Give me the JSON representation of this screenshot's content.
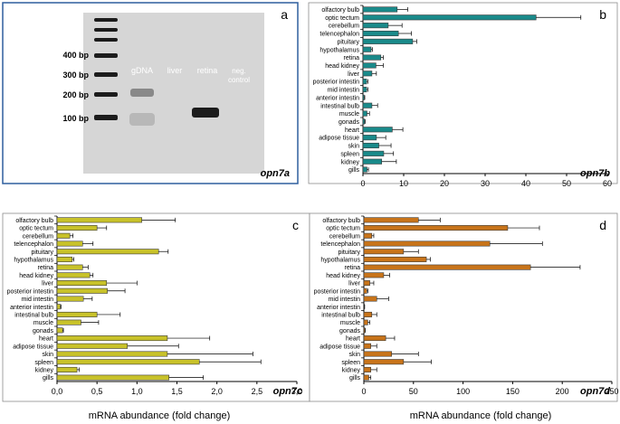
{
  "categories": [
    "olfactory bulb",
    "optic tectum",
    "cerebellum",
    "telencephalon",
    "pituitary",
    "hypothalamus",
    "retina",
    "head kidney",
    "liver",
    "posterior intestin",
    "mid intestin",
    "anterior intestin",
    "intestinal bulb",
    "muscle",
    "gonads",
    "heart",
    "adipose tissue",
    "skin",
    "spleen",
    "kidney",
    "gills"
  ],
  "common_xlabel": "mRNA abundance (fold change)",
  "colors": {
    "gel_frame": "#2e5f9e",
    "axis": "#000000"
  },
  "gel": {
    "panel_letter": "a",
    "gene_label": "opn7a",
    "ladder_labels": [
      "400 bp",
      "300 bp",
      "200 bp",
      "100 bp"
    ],
    "lane_labels": [
      "gDNA",
      "liver",
      "retina",
      "neg.\ncontrol"
    ]
  },
  "chart_data": [
    {
      "type": "bar",
      "orientation": "horizontal",
      "panel_letter": "b",
      "gene_label": "opn7b",
      "color": "#1a8a8a",
      "xlim": [
        0,
        60
      ],
      "xticks": [
        0,
        10,
        20,
        30,
        40,
        50,
        60
      ],
      "xticklabels": [
        "0",
        "10",
        "20",
        "30",
        "40",
        "50",
        "60"
      ],
      "values": [
        8.4,
        42.5,
        6.2,
        8.7,
        12.2,
        2.0,
        4.4,
        3.2,
        2.2,
        0.9,
        0.9,
        0.3,
        2.2,
        1.0,
        0.4,
        7.2,
        3.3,
        3.9,
        5.1,
        4.6,
        1.0
      ],
      "errors": [
        2.6,
        11.0,
        3.4,
        3.2,
        1.0,
        0.3,
        0.6,
        1.8,
        1.1,
        0.3,
        0.3,
        0.15,
        1.4,
        0.6,
        0.15,
        2.6,
        2.3,
        3.0,
        2.4,
        3.6,
        0.35
      ]
    },
    {
      "type": "bar",
      "orientation": "horizontal",
      "panel_letter": "c",
      "gene_label": "opn7c",
      "color": "#c8c22a",
      "xlim": [
        0,
        3
      ],
      "xticks": [
        0,
        0.5,
        1,
        1.5,
        2,
        2.5,
        3
      ],
      "xticklabels": [
        "0,0",
        "0,5",
        "1,0",
        "1,5",
        "2,0",
        "2,5",
        "3,0"
      ],
      "values": [
        1.06,
        0.5,
        0.16,
        0.32,
        1.27,
        0.19,
        0.32,
        0.41,
        0.62,
        0.63,
        0.33,
        0.04,
        0.5,
        0.3,
        0.07,
        1.38,
        0.88,
        1.38,
        1.78,
        0.25,
        1.4
      ],
      "errors": [
        0.42,
        0.12,
        0.04,
        0.13,
        0.12,
        0.02,
        0.07,
        0.04,
        0.38,
        0.22,
        0.11,
        0.01,
        0.29,
        0.22,
        0.01,
        0.53,
        0.64,
        1.07,
        0.77,
        0.03,
        0.43
      ]
    },
    {
      "type": "bar",
      "orientation": "horizontal",
      "panel_letter": "d",
      "gene_label": "opn7d",
      "color": "#c8741a",
      "xlim": [
        0,
        250
      ],
      "xticks": [
        0,
        50,
        100,
        150,
        200,
        250
      ],
      "xticklabels": [
        "0",
        "50",
        "100",
        "150",
        "200",
        "250"
      ],
      "values": [
        55,
        145,
        8,
        127,
        40,
        63,
        168,
        20,
        6,
        3,
        13,
        0.5,
        8,
        4,
        1,
        22,
        7,
        28,
        40,
        7,
        5
      ],
      "errors": [
        22,
        32,
        2,
        53,
        15,
        4,
        50,
        6,
        4,
        1,
        12,
        0.3,
        5,
        2,
        0.4,
        9,
        6,
        27,
        28,
        6,
        2
      ]
    }
  ]
}
